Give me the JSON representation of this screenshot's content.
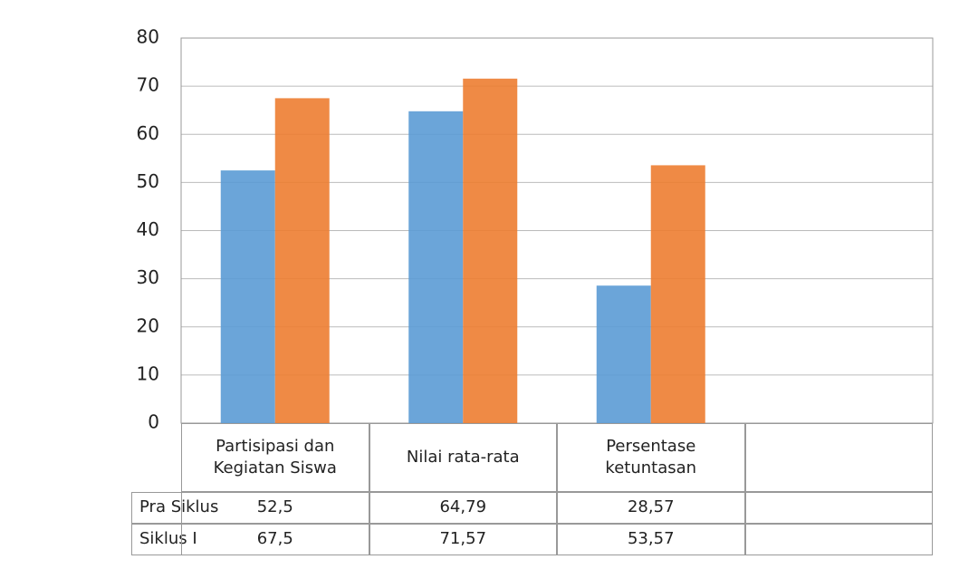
{
  "chart_data": {
    "type": "bar",
    "categories": [
      "Partisipasi dan Kegiatan Siswa",
      "Nilai rata-rata",
      "Persentase ketuntasan",
      null
    ],
    "series": [
      {
        "name": "Pra Siklus",
        "color": "#5b9bd5",
        "values": [
          52.5,
          64.79,
          28.57,
          null
        ],
        "value_labels": [
          "52,5",
          "64,79",
          "28,57",
          null
        ]
      },
      {
        "name": "Siklus I",
        "color": "#ed7d31",
        "values": [
          67.5,
          71.57,
          53.57,
          null
        ],
        "value_labels": [
          "67,5",
          "71,57",
          "53,57",
          null
        ]
      }
    ],
    "ylim": [
      0,
      80
    ],
    "yticks": [
      0,
      10,
      20,
      30,
      40,
      50,
      60,
      70,
      80
    ],
    "grid": true
  }
}
